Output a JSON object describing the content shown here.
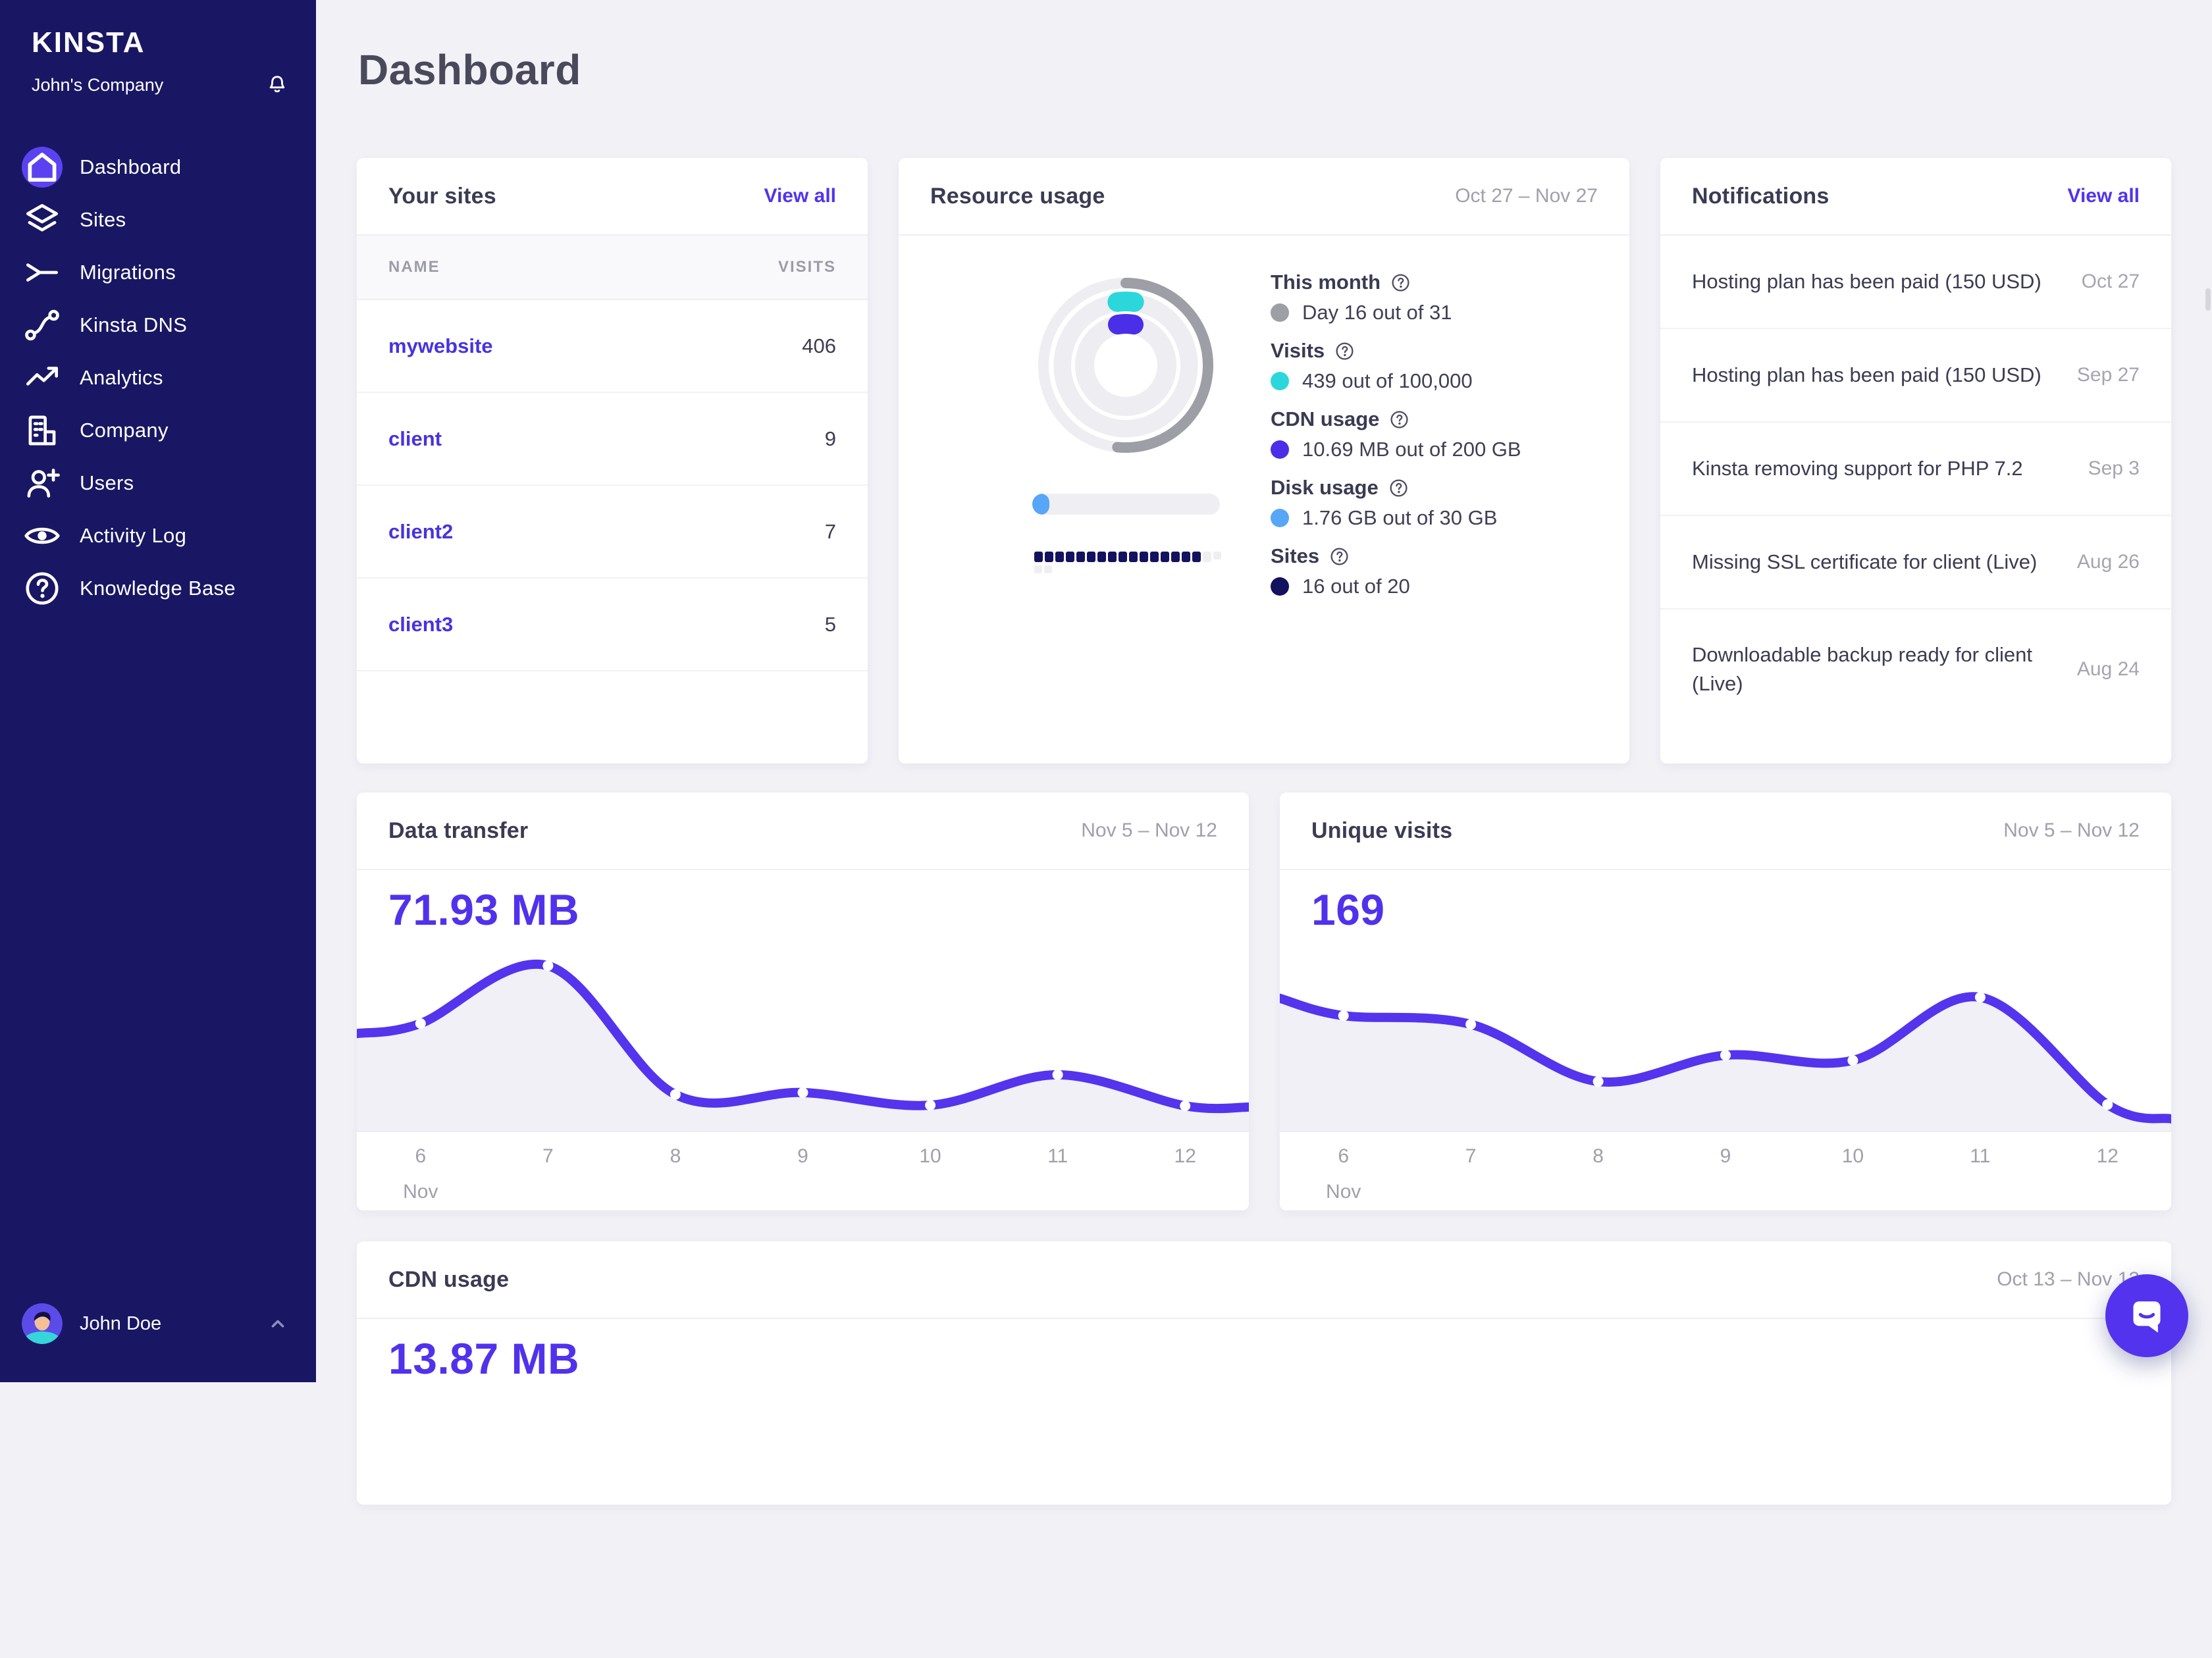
{
  "app": {
    "logo": "Kinsta",
    "company": "John's Company",
    "page_title": "Dashboard"
  },
  "colors": {
    "sidebar_bg": "#191763",
    "accent_purple": "#5333ED",
    "active_icon_bg": "#5B42F1",
    "teal": "#2BD7DB",
    "cdn_purple": "#4B2EE8",
    "disk_blue": "#58A6F8",
    "sites_navy": "#12125E",
    "month_gray": "#9E9EA6",
    "chart_line": "#5434ED",
    "chart_fill": "#F0F0F6",
    "metric_number": "#5132EC"
  },
  "sidebar": {
    "items": [
      {
        "label": "Dashboard",
        "icon": "home-icon",
        "active": true
      },
      {
        "label": "Sites",
        "icon": "sites-layers-icon",
        "active": false
      },
      {
        "label": "Migrations",
        "icon": "migrations-icon",
        "active": false
      },
      {
        "label": "Kinsta DNS",
        "icon": "dns-icon",
        "active": false
      },
      {
        "label": "Analytics",
        "icon": "analytics-icon",
        "active": false
      },
      {
        "label": "Company",
        "icon": "company-icon",
        "active": false
      },
      {
        "label": "Users",
        "icon": "add-user-icon",
        "active": false
      },
      {
        "label": "Activity Log",
        "icon": "activity-eye-icon",
        "active": false
      },
      {
        "label": "Knowledge Base",
        "icon": "knowledge-help-icon",
        "active": false
      }
    ],
    "user": {
      "name": "John Doe"
    }
  },
  "your_sites": {
    "title": "Your sites",
    "view_all": "View all",
    "columns": {
      "name": "NAME",
      "visits": "VISITS"
    },
    "rows": [
      {
        "name": "mywebsite",
        "visits": "406"
      },
      {
        "name": "client",
        "visits": "9"
      },
      {
        "name": "client2",
        "visits": "7"
      },
      {
        "name": "client3",
        "visits": "5"
      }
    ]
  },
  "notifications": {
    "title": "Notifications",
    "view_all": "View all",
    "items": [
      {
        "text": "Hosting plan has been paid (150 USD)",
        "date": "Oct 27"
      },
      {
        "text": "Hosting plan has been paid (150 USD)",
        "date": "Sep 27"
      },
      {
        "text": "Kinsta removing support for PHP 7.2",
        "date": "Sep 3"
      },
      {
        "text": "Missing SSL certificate for client (Live)",
        "date": "Aug 26"
      },
      {
        "text": "Downloadable backup ready for client (Live)",
        "date": "Aug 24"
      }
    ]
  },
  "chart_data": [
    {
      "id": "resource_usage_donut",
      "type": "donut",
      "title": "Resource usage",
      "date_range": "Oct 27 – Nov 27",
      "metrics": [
        {
          "label": "This month",
          "value_text": "Day 16 out of 31",
          "value": 16,
          "max": 31,
          "color": "#9E9EA6",
          "display": "outer-arc"
        },
        {
          "label": "Visits",
          "value_text": "439 out of 100,000",
          "value": 439,
          "max": 100000,
          "color": "#2BD7DB",
          "display": "middle-arc"
        },
        {
          "label": "CDN usage",
          "value_text": "10.69 MB out of 200 GB",
          "value": 0.01069,
          "max": 200,
          "color": "#4B2EE8",
          "display": "inner-arc"
        },
        {
          "label": "Disk usage",
          "value_text": "1.76 GB out of 30 GB",
          "value": 1.76,
          "max": 30,
          "color": "#58A6F8",
          "display": "bar"
        },
        {
          "label": "Sites",
          "value_text": "16 out of 20",
          "value": 16,
          "max": 20,
          "color": "#12125E",
          "display": "squares"
        }
      ]
    },
    {
      "id": "data_transfer",
      "type": "line",
      "title": "Data transfer",
      "date_range": "Nov 5 – Nov 12",
      "total_label": "71.93 MB",
      "x_labels": [
        "6",
        "7",
        "8",
        "9",
        "10",
        "11",
        "12"
      ],
      "x_sub_label": "Nov",
      "y_axis": "hidden (relative scale 0-1 of plot height)",
      "values_rel": {
        "edge_start": 0.448,
        "points": [
          0.494,
          0.76,
          0.167,
          0.176,
          0.118,
          0.258,
          0.115
        ],
        "edge_end": 0.109
      }
    },
    {
      "id": "unique_visits",
      "type": "line",
      "title": "Unique visits",
      "date_range": "Nov 5 – Nov 12",
      "total_label": "169",
      "x_labels": [
        "6",
        "7",
        "8",
        "9",
        "10",
        "11",
        "12"
      ],
      "x_sub_label": "Nov",
      "y_axis": "hidden (relative scale 0-1 of plot height)",
      "values_rel": {
        "edge_start": 0.61,
        "points": [
          0.53,
          0.49,
          0.227,
          0.348,
          0.324,
          0.615,
          0.121
        ],
        "edge_end": 0.055
      }
    },
    {
      "id": "cdn_usage",
      "type": "line",
      "title": "CDN usage",
      "date_range": "Oct 13 – Nov 12",
      "total_label": "13.87 MB",
      "x_labels": [],
      "values_rel": null
    }
  ]
}
